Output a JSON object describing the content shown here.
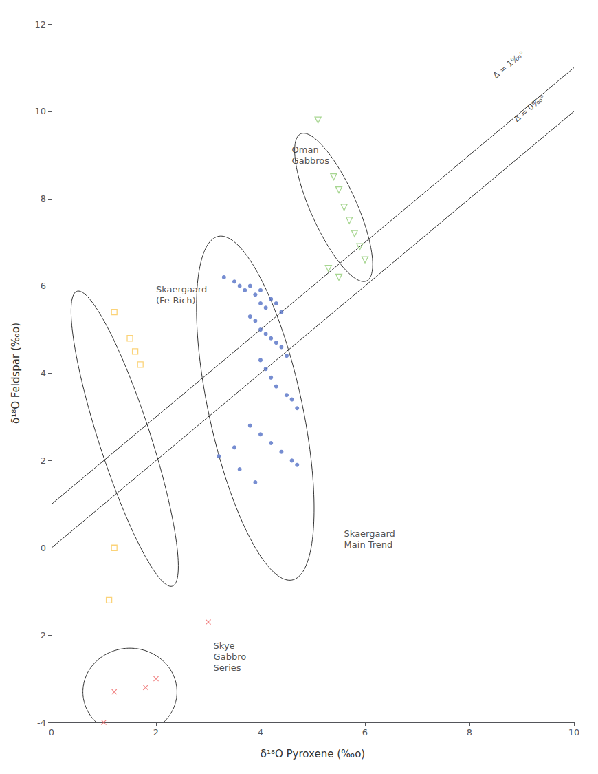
{
  "chart_data": {
    "type": "scatter",
    "xlabel": "δ¹⁸O Pyroxene (‰o)",
    "ylabel": "δ¹⁸O Feldspar (‰o)",
    "xlim": [
      0,
      10
    ],
    "ylim": [
      -4,
      12
    ],
    "xticks": [
      0,
      2,
      4,
      6,
      8,
      10
    ],
    "yticks": [
      -4,
      -2,
      0,
      2,
      4,
      6,
      8,
      10,
      12
    ],
    "grid": false,
    "series": [
      {
        "marker": "circle",
        "values": [
          [
            3.3,
            6.2
          ],
          [
            3.5,
            6.1
          ],
          [
            3.6,
            6.0
          ],
          [
            3.7,
            5.9
          ],
          [
            3.8,
            6.0
          ],
          [
            3.9,
            5.8
          ],
          [
            4.0,
            5.9
          ],
          [
            4.0,
            5.6
          ],
          [
            4.1,
            5.5
          ],
          [
            4.2,
            5.7
          ],
          [
            4.3,
            5.6
          ],
          [
            4.4,
            5.4
          ],
          [
            3.8,
            5.3
          ],
          [
            3.9,
            5.2
          ],
          [
            4.0,
            5.0
          ],
          [
            4.1,
            4.9
          ],
          [
            4.2,
            4.8
          ],
          [
            4.3,
            4.7
          ],
          [
            4.4,
            4.6
          ],
          [
            4.5,
            4.4
          ],
          [
            4.0,
            4.3
          ],
          [
            4.1,
            4.1
          ],
          [
            4.2,
            3.9
          ],
          [
            4.3,
            3.7
          ],
          [
            4.5,
            3.5
          ],
          [
            4.6,
            3.4
          ],
          [
            4.7,
            3.2
          ],
          [
            3.8,
            2.8
          ],
          [
            4.0,
            2.6
          ],
          [
            4.2,
            2.4
          ],
          [
            4.4,
            2.2
          ],
          [
            4.6,
            2.0
          ],
          [
            4.7,
            1.9
          ],
          [
            3.6,
            1.8
          ],
          [
            3.9,
            1.5
          ],
          [
            3.2,
            2.1
          ],
          [
            3.5,
            2.3
          ]
        ]
      },
      {
        "marker": "open_triangle_down",
        "values": [
          [
            5.1,
            9.8
          ],
          [
            5.4,
            8.5
          ],
          [
            5.5,
            8.2
          ],
          [
            5.6,
            7.8
          ],
          [
            5.7,
            7.5
          ],
          [
            5.8,
            7.2
          ],
          [
            5.9,
            6.9
          ],
          [
            6.0,
            6.6
          ],
          [
            5.3,
            6.4
          ],
          [
            5.5,
            6.2
          ]
        ]
      },
      {
        "marker": "open_square",
        "values": [
          [
            1.2,
            5.4
          ],
          [
            1.5,
            4.8
          ],
          [
            1.6,
            4.5
          ],
          [
            1.7,
            4.2
          ],
          [
            1.2,
            0.0
          ],
          [
            1.1,
            -1.2
          ]
        ]
      },
      {
        "marker": "x",
        "values": [
          [
            1.0,
            -4.0
          ],
          [
            1.2,
            -3.3
          ],
          [
            1.8,
            -3.2
          ],
          [
            2.0,
            -3.0
          ],
          [
            3.0,
            -1.7
          ]
        ]
      }
    ],
    "reference_lines": [
      {
        "x": [
          0,
          10
        ],
        "y": [
          1,
          11
        ],
        "label": {
          "text": "Δ = 1‰ᵒ",
          "x": 8.8,
          "y": 11.0
        }
      },
      {
        "x": [
          0,
          10
        ],
        "y": [
          0,
          10
        ],
        "label": {
          "text": "Δ = 0‰ᵒ",
          "x": 9.2,
          "y": 10.0
        }
      }
    ],
    "envelopes": [
      {
        "center": [
          3.9,
          3.2
        ],
        "radii": [
          0.9,
          4.0
        ],
        "angle": 10
      },
      {
        "center": [
          1.4,
          2.5
        ],
        "radii": [
          0.5,
          3.5
        ],
        "angle": 15
      },
      {
        "center": [
          5.4,
          7.8
        ],
        "radii": [
          0.45,
          1.8
        ],
        "angle": 20
      },
      {
        "center": [
          1.5,
          -3.3
        ],
        "radii": [
          0.9,
          1.0
        ],
        "angle": 0
      }
    ],
    "annotations": [
      {
        "text": "Oman\nGabbros",
        "x": 4.6,
        "y": 9.0
      },
      {
        "text": "Skaergaard\n(Fe-Rich)",
        "x": 2.0,
        "y": 5.8
      },
      {
        "text": "Skaergaard\nMain Trend",
        "x": 5.6,
        "y": 0.2
      },
      {
        "text": "Skye\nGabbro\nSeries",
        "x": 3.1,
        "y": -2.5
      }
    ]
  }
}
